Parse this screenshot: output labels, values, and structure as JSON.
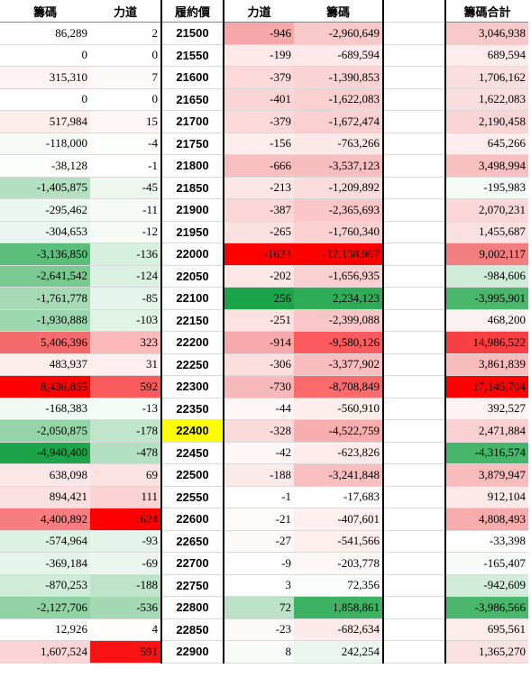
{
  "headers": {
    "chip_left": "籌碼",
    "force_left": "力道",
    "strike": "履約價",
    "force_right": "力道",
    "chip_right": "籌碼",
    "chip_total": "籌碼合計"
  },
  "highlight_strike": "22400",
  "rows": [
    {
      "chip_left": "86,289",
      "force_left": "2",
      "strike": "21500",
      "force_right": "-946",
      "chip_right": "-2,960,649",
      "total": "3,046,938",
      "bg": [
        "#fffdfd",
        "#fffefe",
        "#f5a7a9",
        "#f9c9ca",
        "#f9c8c9"
      ]
    },
    {
      "chip_left": "0",
      "force_left": "0",
      "strike": "21550",
      "force_right": "-199",
      "chip_right": "-689,594",
      "total": "689,594",
      "bg": [
        "#ffffff",
        "#ffffff",
        "#fde9ea",
        "#fde9e9",
        "#fdecec"
      ]
    },
    {
      "chip_left": "315,310",
      "force_left": "7",
      "strike": "21600",
      "force_right": "-379",
      "chip_right": "-1,390,853",
      "total": "1,706,162",
      "bg": [
        "#fff3f3",
        "#fffafa",
        "#fbd8d9",
        "#fad3d4",
        "#fbdedf"
      ]
    },
    {
      "chip_left": "0",
      "force_left": "0",
      "strike": "21650",
      "force_right": "-401",
      "chip_right": "-1,622,083",
      "total": "1,622,083",
      "bg": [
        "#ffffff",
        "#ffffff",
        "#fbd5d6",
        "#facfd0",
        "#fbdfe0"
      ]
    },
    {
      "chip_left": "517,984",
      "force_left": "15",
      "strike": "21700",
      "force_right": "-379",
      "chip_right": "-1,672,474",
      "total": "2,190,458",
      "bg": [
        "#fdecec",
        "#fff7f7",
        "#fbd8d9",
        "#facfd0",
        "#fad5d6"
      ]
    },
    {
      "chip_left": "-118,000",
      "force_left": "-4",
      "strike": "21750",
      "force_right": "-156",
      "chip_right": "-763,266",
      "total": "645,266",
      "bg": [
        "#f6fbf7",
        "#fcfefc",
        "#fdeded",
        "#fde8e8",
        "#fdeded"
      ]
    },
    {
      "chip_left": "-38,128",
      "force_left": "-1",
      "strike": "21800",
      "force_right": "-666",
      "chip_right": "-3,537,123",
      "total": "3,498,994",
      "bg": [
        "#fcfefc",
        "#ffffff",
        "#f8bfc0",
        "#f7bec0",
        "#f8c0c1"
      ]
    },
    {
      "chip_left": "-1,405,875",
      "force_left": "-45",
      "strike": "21850",
      "force_right": "-213",
      "chip_right": "-1,209,892",
      "total": "-195,983",
      "bg": [
        "#b4e0c1",
        "#eef8f1",
        "#fde6e6",
        "#fbdcdd",
        "#f4fbf6"
      ]
    },
    {
      "chip_left": "-295,462",
      "force_left": "-11",
      "strike": "21900",
      "force_right": "-387",
      "chip_right": "-2,365,693",
      "total": "2,070,231",
      "bg": [
        "#eaf6ee",
        "#f7fbf8",
        "#fbd6d7",
        "#fac6c7",
        "#fad8d9"
      ]
    },
    {
      "chip_left": "-304,653",
      "force_left": "-12",
      "strike": "21950",
      "force_right": "-265",
      "chip_right": "-1,760,340",
      "total": "1,455,687",
      "bg": [
        "#e9f6ed",
        "#f6fbf7",
        "#fce1e1",
        "#fad0d1",
        "#fbe0e1"
      ]
    },
    {
      "chip_left": "-3,136,850",
      "force_left": "-136",
      "strike": "22000",
      "force_right": "-1623",
      "chip_right": "-12,138,967",
      "total": "9,002,117",
      "bg": [
        "#5bbe7b",
        "#d7efdf",
        "#ff0000",
        "#ff0000",
        "#f37e80"
      ]
    },
    {
      "chip_left": "-2,641,542",
      "force_left": "-124",
      "strike": "22050",
      "force_right": "-202",
      "chip_right": "-1,656,935",
      "total": "-984,606",
      "bg": [
        "#79c991",
        "#dbf1e2",
        "#fde7e7",
        "#facfd0",
        "#cfecd9"
      ]
    },
    {
      "chip_left": "-1,761,778",
      "force_left": "-85",
      "strike": "22100",
      "force_right": "256",
      "chip_right": "2,234,123",
      "total": "-3,995,901",
      "bg": [
        "#a5dab5",
        "#e6f5eb",
        "#1ba44a",
        "#2fac57",
        "#4bb76d"
      ]
    },
    {
      "chip_left": "-1,930,888",
      "force_left": "-103",
      "strike": "22150",
      "force_right": "-251",
      "chip_right": "-2,399,088",
      "total": "468,200",
      "bg": [
        "#9dd7ae",
        "#e1f3e7",
        "#fce2e2",
        "#fac5c6",
        "#fdf2f2"
      ]
    },
    {
      "chip_left": "5,406,396",
      "force_left": "323",
      "strike": "22200",
      "force_right": "-914",
      "chip_right": "-9,580,126",
      "total": "14,986,522",
      "bg": [
        "#f56a6c",
        "#fbb9ba",
        "#f6a9ab",
        "#fb5b5e",
        "#f83f42"
      ]
    },
    {
      "chip_left": "483,937",
      "force_left": "31",
      "strike": "22250",
      "force_right": "-306",
      "chip_right": "-3,377,902",
      "total": "3,861,839",
      "bg": [
        "#fdeeee",
        "#fdefef",
        "#fcdedf",
        "#f9bdbf",
        "#f8bcbd"
      ]
    },
    {
      "chip_left": "8,436,855",
      "force_left": "592",
      "strike": "22300",
      "force_right": "-730",
      "chip_right": "-8,708,849",
      "total": "17,145,704",
      "bg": [
        "#ff0000",
        "#f95a5c",
        "#f7b9ba",
        "#fb6b6d",
        "#ff0000"
      ]
    },
    {
      "chip_left": "-168,383",
      "force_left": "-13",
      "strike": "22350",
      "force_right": "-44",
      "chip_right": "-560,910",
      "total": "392,527",
      "bg": [
        "#f3faf5",
        "#f5fbf7",
        "#fef7f7",
        "#feeded",
        "#fef4f4"
      ]
    },
    {
      "chip_left": "-2,050,875",
      "force_left": "-178",
      "strike": "22400",
      "force_right": "-328",
      "chip_right": "-4,522,759",
      "total": "2,471,884",
      "bg": [
        "#95d4a8",
        "#bfe5ca",
        "#fbdadb",
        "#f8adae",
        "#fad0d1"
      ]
    },
    {
      "chip_left": "-4,940,400",
      "force_left": "-478",
      "strike": "22450",
      "force_right": "-42",
      "chip_right": "-623,826",
      "total": "-4,316,574",
      "bg": [
        "#1da44b",
        "#b3e0c1",
        "#fef7f7",
        "#feecec",
        "#47b56a"
      ]
    },
    {
      "chip_left": "638,098",
      "force_left": "69",
      "strike": "22500",
      "force_right": "-188",
      "chip_right": "-3,241,848",
      "total": "3,879,947",
      "bg": [
        "#fce8e9",
        "#fde2e3",
        "#fdeaea",
        "#f9bebf",
        "#f8bcbd"
      ]
    },
    {
      "chip_left": "894,421",
      "force_left": "111",
      "strike": "22550",
      "force_right": "-1",
      "chip_right": "-17,683",
      "total": "912,104",
      "bg": [
        "#fcdfe0",
        "#fcd3d4",
        "#ffffff",
        "#ffffff",
        "#fde9ea"
      ]
    },
    {
      "chip_left": "4,400,892",
      "force_left": "624",
      "strike": "22600",
      "force_right": "-21",
      "chip_right": "-407,601",
      "total": "4,808,493",
      "bg": [
        "#f77e80",
        "#ff0000",
        "#fefbfb",
        "#fef0f0",
        "#f7acad"
      ]
    },
    {
      "chip_left": "-574,964",
      "force_left": "-93",
      "strike": "22650",
      "force_right": "-27",
      "chip_right": "-541,566",
      "total": "-33,398",
      "bg": [
        "#dcf1e3",
        "#e5f4ea",
        "#fefafa",
        "#feeeee",
        "#fdfefd"
      ]
    },
    {
      "chip_left": "-369,184",
      "force_left": "-69",
      "strike": "22700",
      "force_right": "-9",
      "chip_right": "-203,778",
      "total": "-165,407",
      "bg": [
        "#e6f5eb",
        "#eaf6ee",
        "#fffdfd",
        "#fef7f7",
        "#f6fbf7"
      ]
    },
    {
      "chip_left": "-870,253",
      "force_left": "-188",
      "strike": "22750",
      "force_right": "3",
      "chip_right": "72,356",
      "total": "-942,609",
      "bg": [
        "#cfecd8",
        "#bde4c8",
        "#fdfefd",
        "#fbfdfc",
        "#d1edda"
      ]
    },
    {
      "chip_left": "-2,127,706",
      "force_left": "-536",
      "strike": "22800",
      "force_right": "72",
      "chip_right": "1,858,861",
      "total": "-3,986,566",
      "bg": [
        "#90d2a4",
        "#a3d9b3",
        "#bce3c7",
        "#3eb263",
        "#4bb76d"
      ]
    },
    {
      "chip_left": "12,926",
      "force_left": "4",
      "strike": "22850",
      "force_right": "-23",
      "chip_right": "-682,634",
      "total": "695,561",
      "bg": [
        "#fffefe",
        "#fffcfc",
        "#fefafa",
        "#feeaea",
        "#fdecec"
      ]
    },
    {
      "chip_left": "1,607,524",
      "force_left": "591",
      "strike": "22900",
      "force_right": "8",
      "chip_right": "242,254",
      "total": "1,365,270",
      "bg": [
        "#fbd4d5",
        "#fb1212",
        "#f8fcf9",
        "#eaf6ee",
        "#fce1e2"
      ]
    }
  ]
}
